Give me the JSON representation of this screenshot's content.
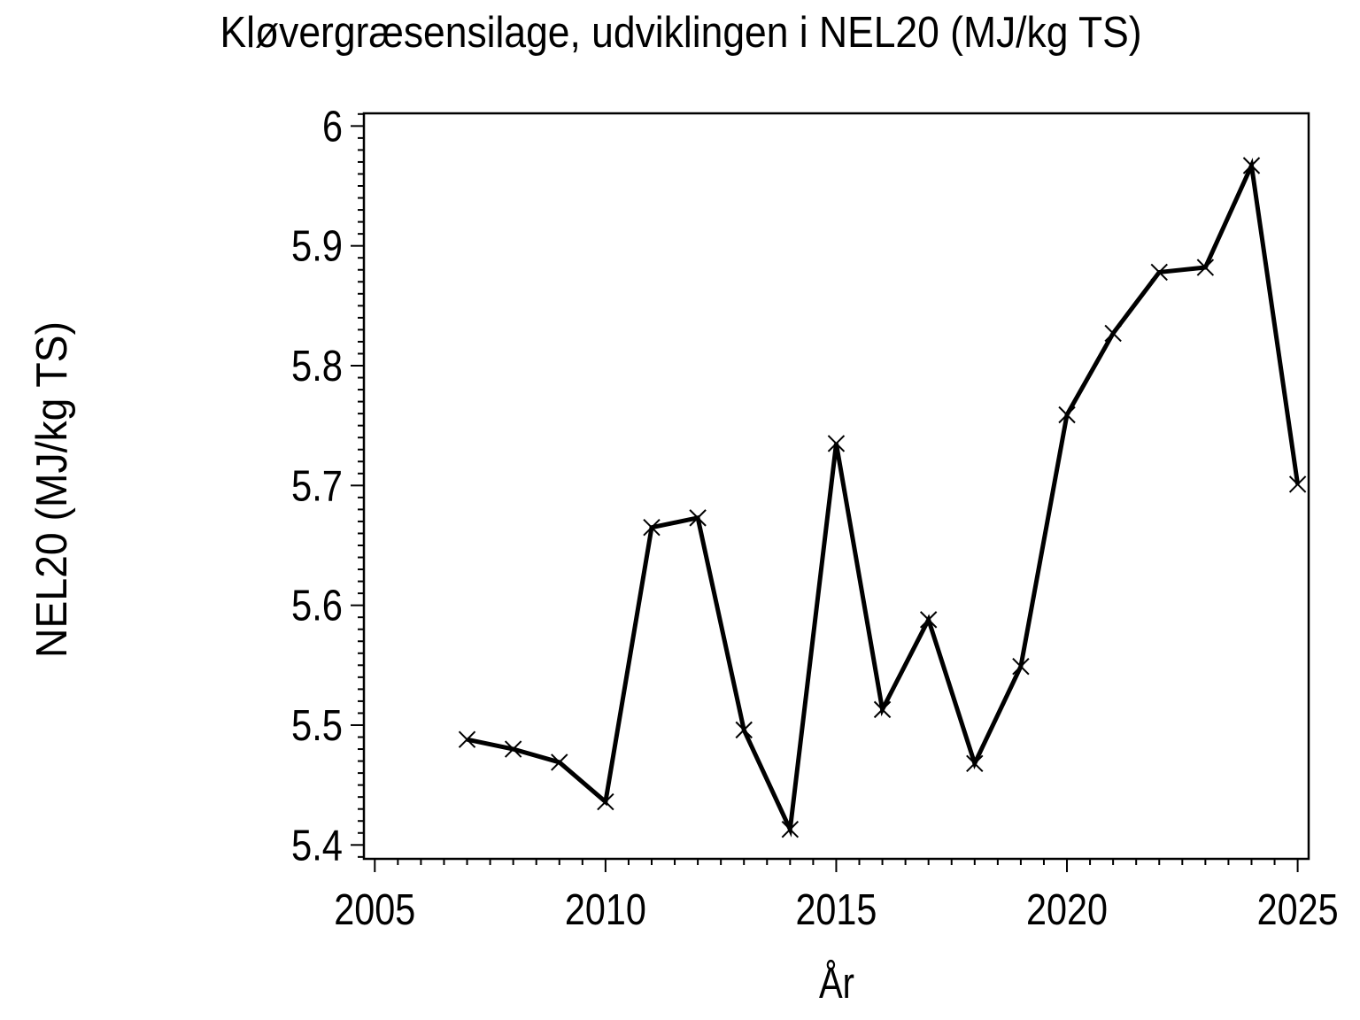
{
  "page": {
    "background_color": "#ffffff",
    "foreground_color": "#000000"
  },
  "chart_data": {
    "type": "line",
    "title": "Kløvergræsensilage, udviklingen i NEL20 (MJ/kg TS)",
    "xlabel": "År",
    "ylabel": "NEL20 (MJ/kg TS)",
    "x": [
      2007,
      2008,
      2009,
      2010,
      2011,
      2012,
      2013,
      2014,
      2015,
      2016,
      2017,
      2018,
      2019,
      2020,
      2021,
      2022,
      2023,
      2024,
      2025
    ],
    "values": [
      5.488,
      5.48,
      5.469,
      5.436,
      5.665,
      5.673,
      5.496,
      5.413,
      5.735,
      5.513,
      5.588,
      5.468,
      5.549,
      5.759,
      5.827,
      5.878,
      5.882,
      5.967,
      5.701
    ],
    "series_color": "#000000",
    "marker": "x",
    "xlim": [
      2004.764,
      2025.238
    ],
    "ylim": [
      5.3884,
      6.0106
    ],
    "xticks": {
      "major": [
        2005,
        2010,
        2015,
        2020,
        2025
      ],
      "major_labels": [
        "2005",
        "2010",
        "2015",
        "2020",
        "2025"
      ],
      "minor_step": 0.5
    },
    "yticks": {
      "major": [
        5.4,
        5.5,
        5.6,
        5.7,
        5.8,
        5.9,
        6.0
      ],
      "major_labels": [
        "5.4",
        "5.5",
        "5.6",
        "5.7",
        "5.8",
        "5.9",
        "6"
      ],
      "minor_step": 0.01
    },
    "grid": false,
    "legend": null,
    "frame": "box"
  }
}
